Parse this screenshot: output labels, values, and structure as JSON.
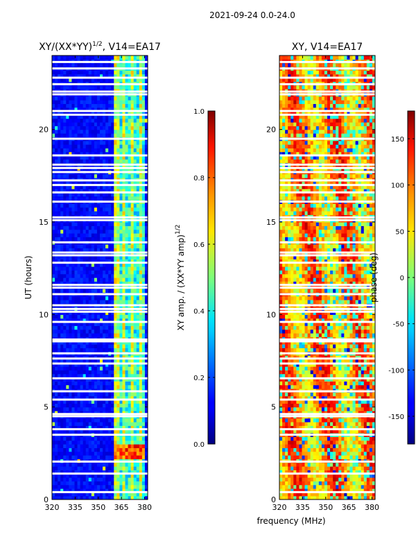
{
  "figure": {
    "suptitle": "2021-09-24 0.0-24.0",
    "shared_xlabel": "frequency (MHz)"
  },
  "chart_data": [
    {
      "type": "heatmap",
      "title_main": "XY/(XX*YY)",
      "title_sup": "1/2",
      "title_tail": ", V14=EA17",
      "xlabel": "",
      "ylabel": "UT (hours)",
      "xlim": [
        320,
        382
      ],
      "ylim": [
        0,
        24
      ],
      "xticks": [
        "320",
        "335",
        "350",
        "365",
        "380"
      ],
      "xtick_values": [
        320,
        335,
        350,
        365,
        380
      ],
      "yticks": [
        "0",
        "5",
        "10",
        "15",
        "20"
      ],
      "ytick_values": [
        0,
        5,
        10,
        15,
        20
      ],
      "colormap": "jet",
      "colorbar": {
        "label_main": "XY amp. / (XX*YY amp)",
        "label_sup": "1/2",
        "range": [
          0.0,
          1.0
        ],
        "ticks": [
          "0.0",
          "0.2",
          "0.4",
          "0.6",
          "0.8",
          "1.0"
        ],
        "tick_values": [
          0.0,
          0.2,
          0.4,
          0.6,
          0.8,
          1.0
        ]
      },
      "features": {
        "background_value": 0.08,
        "bright_band_mhz": [
          361,
          380
        ],
        "bright_band_value": 0.45,
        "hot_patch_hours": [
          2.2,
          3.1
        ],
        "hot_patch_value": 0.8
      },
      "flagged_ut_hours": [
        0.4,
        1.4,
        2.05,
        3.5,
        3.8,
        4.5,
        4.62,
        5.4,
        5.85,
        6.55,
        7.35,
        7.62,
        7.9,
        8.55,
        8.65,
        9.6,
        10.15,
        10.3,
        10.5,
        11.1,
        11.45,
        11.6,
        12.8,
        13.2,
        13.35,
        13.9,
        15.1,
        15.25,
        16.1,
        16.6,
        17.0,
        17.25,
        17.7,
        17.92,
        18.1,
        18.6,
        19.5,
        20.8,
        21.0,
        21.9,
        22.05,
        22.45,
        22.8,
        23.3,
        23.65
      ]
    },
    {
      "type": "heatmap",
      "title": "XY, V14=EA17",
      "xlabel": "",
      "ylabel": "",
      "xlim": [
        320,
        382
      ],
      "ylim": [
        0,
        24
      ],
      "xticks": [
        "320",
        "335",
        "350",
        "365",
        "380"
      ],
      "xtick_values": [
        320,
        335,
        350,
        365,
        380
      ],
      "yticks": [
        "0",
        "5",
        "10",
        "15",
        "20"
      ],
      "ytick_values": [
        0,
        5,
        10,
        15,
        20
      ],
      "colormap": "jet",
      "colorbar": {
        "label": "phase (deg)",
        "range": [
          -180,
          180
        ],
        "ticks": [
          "-150",
          "-100",
          "-50",
          "0",
          "50",
          "100",
          "150"
        ],
        "tick_values": [
          -150,
          -100,
          -50,
          0,
          50,
          100,
          150
        ]
      },
      "features": {
        "phase_style": "noisy phase wrapping, dominant orange/red bands with cyan-green streaks"
      },
      "flagged_ut_hours": [
        0.4,
        1.4,
        2.05,
        3.5,
        3.8,
        4.5,
        4.62,
        5.4,
        5.85,
        6.55,
        7.35,
        7.62,
        7.9,
        8.55,
        8.65,
        9.6,
        10.15,
        10.3,
        10.5,
        11.1,
        11.45,
        11.6,
        12.8,
        13.2,
        13.35,
        13.9,
        15.1,
        15.25,
        16.1,
        16.6,
        17.0,
        17.25,
        17.7,
        17.92,
        18.1,
        18.6,
        19.5,
        20.8,
        21.0,
        21.9,
        22.05,
        22.45,
        22.8,
        23.3,
        23.65
      ]
    }
  ]
}
